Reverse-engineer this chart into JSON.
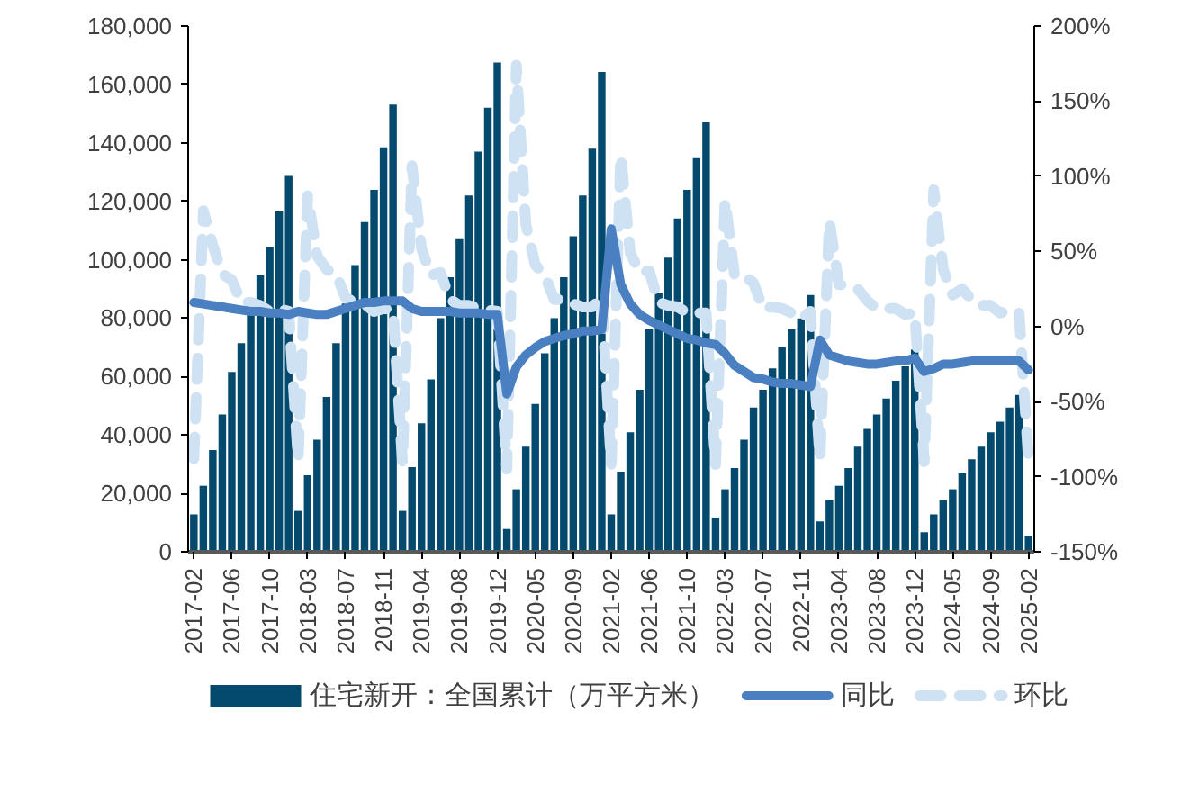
{
  "chart_data": {
    "type": "bar",
    "categories": [
      "2017-02",
      null,
      null,
      null,
      "2017-06",
      null,
      null,
      null,
      "2017-10",
      null,
      null,
      null,
      "2018-03",
      null,
      null,
      null,
      "2018-07",
      null,
      null,
      null,
      "2018-11",
      null,
      null,
      null,
      "2019-04",
      null,
      null,
      null,
      "2019-08",
      null,
      null,
      null,
      "2019-12",
      null,
      null,
      null,
      "2020-05",
      null,
      null,
      null,
      "2020-09",
      null,
      null,
      null,
      "2021-02",
      null,
      null,
      null,
      "2021-06",
      null,
      null,
      null,
      "2021-10",
      null,
      null,
      null,
      "2022-03",
      null,
      null,
      null,
      "2022-07",
      null,
      null,
      null,
      "2022-11",
      null,
      null,
      null,
      "2023-04",
      null,
      null,
      null,
      "2023-08",
      null,
      null,
      null,
      "2023-12",
      null,
      null,
      null,
      "2024-05",
      null,
      null,
      null,
      "2024-09",
      null,
      null,
      null,
      "2025-02"
    ],
    "series": [
      {
        "name": "住宅新开：全国累计（万平方米）",
        "color": "#034a6e",
        "values": [
          12800,
          22600,
          34800,
          47000,
          61600,
          71400,
          83000,
          94600,
          104300,
          116500,
          128700,
          14000,
          26200,
          38400,
          53000,
          71400,
          85000,
          98200,
          112900,
          123900,
          138500,
          153100,
          14000,
          29000,
          44000,
          59000,
          80000,
          94000,
          107000,
          122000,
          137000,
          152000,
          167500,
          7800,
          21400,
          36000,
          50600,
          68000,
          80000,
          94000,
          108000,
          122000,
          138000,
          164300,
          12800,
          27400,
          40900,
          55500,
          76300,
          88500,
          100700,
          114100,
          123900,
          134800,
          147000,
          11600,
          21400,
          28700,
          38400,
          49400,
          55500,
          62800,
          70100,
          76200,
          79900,
          87900,
          10400,
          17700,
          22600,
          28700,
          36000,
          42100,
          47000,
          52500,
          58600,
          63500,
          69300,
          6700,
          12800,
          17700,
          21400,
          26800,
          31700,
          36000,
          40900,
          44500,
          49400,
          53700,
          5500
        ]
      },
      {
        "name": "同比",
        "type": "line",
        "axis": "y2",
        "color": "#4a80c2",
        "line_style": "solid",
        "values": [
          16,
          15,
          14,
          13,
          12,
          11,
          10,
          10,
          9,
          9,
          8,
          10,
          9,
          8,
          8,
          10,
          12,
          14,
          16,
          16,
          17,
          17,
          17,
          12,
          10,
          10,
          10,
          10,
          9,
          9,
          9,
          8,
          8,
          -45,
          -27,
          -19,
          -14,
          -10,
          -8,
          -6,
          -5,
          -3,
          -3,
          -2,
          65,
          28,
          15,
          8,
          4,
          1,
          -2,
          -5,
          -8,
          -9,
          -11,
          -12,
          -18,
          -26,
          -30,
          -34,
          -35,
          -37,
          -38,
          -38,
          -39,
          -40,
          -9,
          -19,
          -21,
          -23,
          -24,
          -25,
          -25,
          -24,
          -23,
          -23,
          -21,
          -30,
          -28,
          -25,
          -25,
          -24,
          -23,
          -23,
          -23,
          -23,
          -23,
          -23,
          -29
        ]
      },
      {
        "name": "环比",
        "type": "line",
        "axis": "y2",
        "color": "#cfe2f3",
        "line_style": "dashed",
        "values": [
          -88,
          77,
          54,
          35,
          31,
          16,
          16,
          14,
          10,
          12,
          10,
          -89,
          87,
          47,
          38,
          35,
          19,
          16,
          15,
          10,
          12,
          11,
          -91,
          107,
          52,
          34,
          36,
          18,
          14,
          14,
          12,
          11,
          10,
          -95,
          174,
          68,
          41,
          34,
          18,
          18,
          15,
          13,
          13,
          19,
          -92,
          114,
          49,
          36,
          37,
          16,
          14,
          13,
          9,
          9,
          9,
          -92,
          84,
          34,
          34,
          29,
          12,
          13,
          12,
          9,
          5,
          10,
          -88,
          70,
          28,
          27,
          25,
          17,
          12,
          12,
          12,
          8,
          9,
          -90,
          91,
          38,
          21,
          25,
          18,
          14,
          14,
          9,
          11,
          9,
          -90
        ]
      }
    ],
    "ylim": [
      0,
      180000
    ],
    "yticks": [
      0,
      {
        "value": 20000,
        "label": "20,000"
      },
      {
        "value": 40000,
        "label": "40,000"
      },
      {
        "value": 60000,
        "label": "60,000"
      },
      {
        "value": 80000,
        "label": "80,000"
      },
      {
        "value": 100000,
        "label": "100,000"
      },
      {
        "value": 120000,
        "label": "120,000"
      },
      {
        "value": 140000,
        "label": "140,000"
      },
      {
        "value": 160000,
        "label": "160,000"
      },
      {
        "value": 180000,
        "label": "180,000"
      }
    ],
    "y2lim": [
      -150,
      200
    ],
    "y2ticks": [
      {
        "value": -150,
        "label": "-150%"
      },
      {
        "value": -100,
        "label": "-100%"
      },
      {
        "value": -50,
        "label": "-50%"
      },
      {
        "value": 0,
        "label": "0%"
      },
      {
        "value": 50,
        "label": "50%"
      },
      {
        "value": 100,
        "label": "100%"
      },
      {
        "value": 150,
        "label": "150%"
      },
      {
        "value": 200,
        "label": "200%"
      }
    ],
    "grid": false,
    "legend": "bottom"
  }
}
